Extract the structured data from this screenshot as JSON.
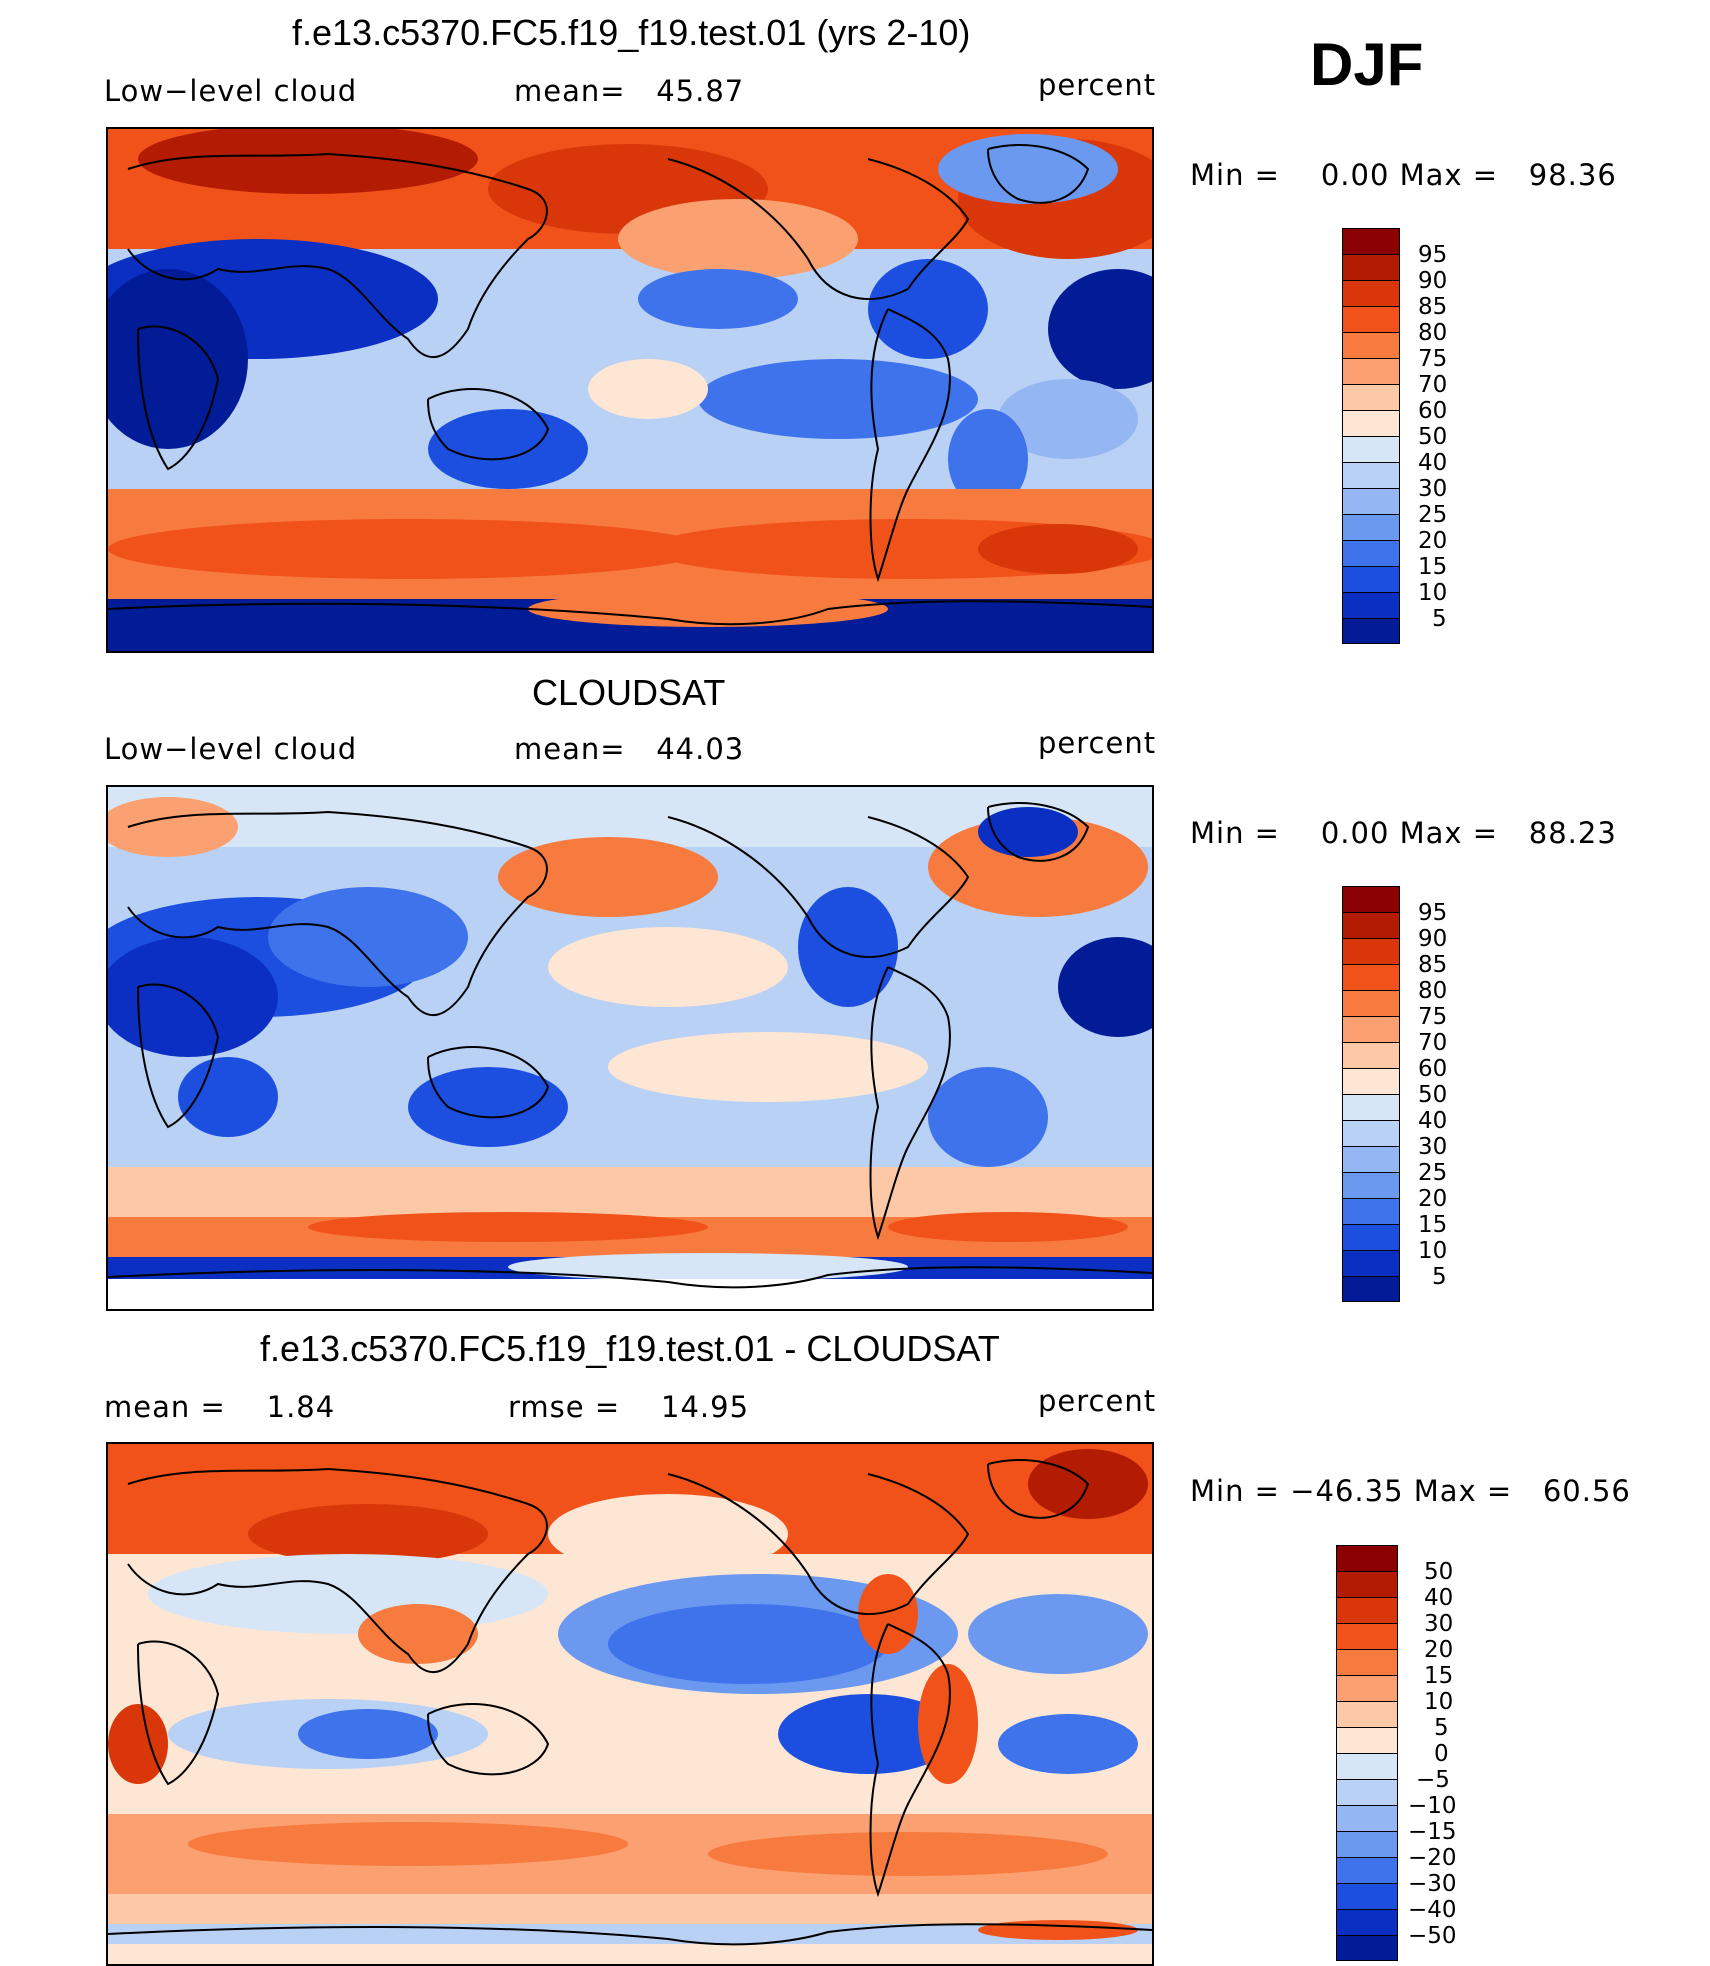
{
  "season": "DJF",
  "panels": [
    {
      "title": "f.e13.c5370.FC5.f19_f19.test.01 (yrs 2-10)",
      "left_label": "Low−level cloud",
      "center_label": "mean=   45.87",
      "right_label": "percent",
      "minmax": "Min =    0.00 Max =   98.36",
      "colorbar": {
        "colors": [
          "#8b0000",
          "#b31b02",
          "#d9370a",
          "#f1521a",
          "#f77b3f",
          "#fba071",
          "#fcc8a6",
          "#fde6d4",
          "#d6e6f7",
          "#b8d1f4",
          "#94b6f2",
          "#6a99ef",
          "#3e73ec",
          "#1c4fe0",
          "#0a2fc2",
          "#021b96"
        ],
        "labels": [
          "95",
          "90",
          "85",
          "80",
          "75",
          "70",
          "60",
          "50",
          "40",
          "30",
          "25",
          "20",
          "15",
          "10",
          "5"
        ]
      }
    },
    {
      "title": "CLOUDSAT",
      "left_label": "Low−level cloud",
      "center_label": "mean=   44.03",
      "right_label": "percent",
      "minmax": "Min =    0.00 Max =   88.23",
      "colorbar": {
        "colors": [
          "#8b0000",
          "#b31b02",
          "#d9370a",
          "#f1521a",
          "#f77b3f",
          "#fba071",
          "#fcc8a6",
          "#fde6d4",
          "#d6e6f7",
          "#b8d1f4",
          "#94b6f2",
          "#6a99ef",
          "#3e73ec",
          "#1c4fe0",
          "#0a2fc2",
          "#021b96"
        ],
        "labels": [
          "95",
          "90",
          "85",
          "80",
          "75",
          "70",
          "60",
          "50",
          "40",
          "30",
          "25",
          "20",
          "15",
          "10",
          "5"
        ]
      }
    },
    {
      "title": "f.e13.c5370.FC5.f19_f19.test.01 - CLOUDSAT",
      "left_label": "mean =    1.84",
      "center_label": "rmse =    14.95",
      "right_label": "percent",
      "minmax": "Min = −46.35 Max =   60.56",
      "colorbar": {
        "colors": [
          "#8b0000",
          "#b31b02",
          "#d9370a",
          "#f1521a",
          "#f77b3f",
          "#fba071",
          "#fcc8a6",
          "#fde6d4",
          "#d6e6f7",
          "#b8d1f4",
          "#94b6f2",
          "#6a99ef",
          "#3e73ec",
          "#1c4fe0",
          "#0a2fc2",
          "#021b96"
        ],
        "labels": [
          "50",
          "40",
          "30",
          "20",
          "15",
          "10",
          "5",
          "0",
          "−5",
          "−10",
          "−15",
          "−20",
          "−30",
          "−40",
          "−50"
        ]
      }
    }
  ]
}
